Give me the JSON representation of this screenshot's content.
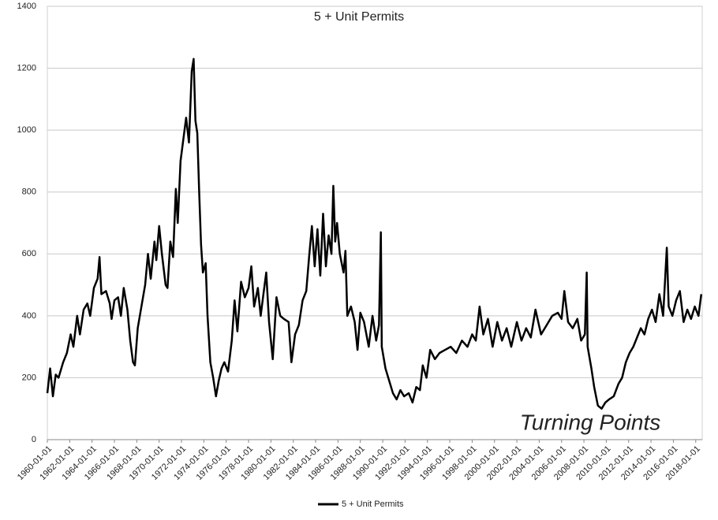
{
  "chart_data": {
    "type": "line",
    "title": "5 + Unit Permits",
    "annotation": "Turning Points",
    "x": [
      "1960-01-01",
      "1960-04-01",
      "1960-07-01",
      "1960-10-01",
      "1961-01-01",
      "1961-06-01",
      "1961-10-01",
      "1962-02-01",
      "1962-05-01",
      "1962-09-01",
      "1962-12-01",
      "1963-04-01",
      "1963-08-01",
      "1963-11-01",
      "1964-03-01",
      "1964-07-01",
      "1964-09-01",
      "1964-11-01",
      "1965-04-01",
      "1965-08-01",
      "1965-10-01",
      "1966-01-01",
      "1966-05-01",
      "1966-08-01",
      "1966-11-01",
      "1967-03-01",
      "1967-06-01",
      "1967-09-01",
      "1967-11-01",
      "1968-02-01",
      "1968-06-01",
      "1968-10-01",
      "1969-01-01",
      "1969-04-01",
      "1969-08-01",
      "1969-10-01",
      "1970-01-01",
      "1970-04-01",
      "1970-08-01",
      "1970-10-01",
      "1971-01-01",
      "1971-04-01",
      "1971-07-01",
      "1971-09-01",
      "1971-12-01",
      "1972-03-01",
      "1972-06-01",
      "1972-09-01",
      "1972-12-01",
      "1973-02-01",
      "1973-04-01",
      "1973-06-01",
      "1973-08-01",
      "1973-10-01",
      "1973-12-01",
      "1974-03-01",
      "1974-05-01",
      "1974-08-01",
      "1974-11-01",
      "1975-02-01",
      "1975-05-01",
      "1975-08-01",
      "1975-11-01",
      "1976-03-01",
      "1976-07-01",
      "1976-10-01",
      "1977-01-01",
      "1977-05-01",
      "1977-09-01",
      "1978-01-01",
      "1978-04-01",
      "1978-07-01",
      "1978-11-01",
      "1979-02-01",
      "1979-05-01",
      "1979-08-01",
      "1979-11-01",
      "1980-03-01",
      "1980-07-01",
      "1980-11-01",
      "1981-03-01",
      "1981-08-01",
      "1981-11-01",
      "1982-03-01",
      "1982-07-01",
      "1982-11-01",
      "1983-03-01",
      "1983-06-01",
      "1983-09-01",
      "1983-12-01",
      "1984-03-01",
      "1984-06-01",
      "1984-09-01",
      "1984-12-01",
      "1985-03-01",
      "1985-06-01",
      "1985-08-01",
      "1985-10-01",
      "1985-12-01",
      "1986-03-01",
      "1986-07-01",
      "1986-09-01",
      "1986-11-01",
      "1987-03-01",
      "1987-07-01",
      "1987-10-01",
      "1988-01-01",
      "1988-05-01",
      "1988-10-01",
      "1989-02-01",
      "1989-06-01",
      "1989-09-01",
      "1989-11-01",
      "1989-12-01",
      "1990-04-01",
      "1990-08-01",
      "1990-12-01",
      "1991-04-01",
      "1991-08-01",
      "1991-12-01",
      "1992-05-01",
      "1992-09-01",
      "1993-01-01",
      "1993-05-01",
      "1993-08-01",
      "1993-12-01",
      "1994-04-01",
      "1994-09-01",
      "1995-02-01",
      "1995-08-01",
      "1996-02-01",
      "1996-08-01",
      "1997-02-01",
      "1997-08-01",
      "1998-01-01",
      "1998-05-01",
      "1998-09-01",
      "1999-01-01",
      "1999-06-01",
      "1999-11-01",
      "2000-04-01",
      "2000-09-01",
      "2001-02-01",
      "2001-07-01",
      "2002-01-01",
      "2002-06-01",
      "2002-11-01",
      "2003-04-01",
      "2003-09-01",
      "2004-03-01",
      "2004-09-01",
      "2005-03-01",
      "2005-09-01",
      "2006-01-01",
      "2006-04-01",
      "2006-08-01",
      "2007-01-01",
      "2007-06-01",
      "2007-10-01",
      "2008-02-01",
      "2008-04-01",
      "2008-05-01",
      "2008-09-01",
      "2008-12-01",
      "2009-04-01",
      "2009-08-01",
      "2009-12-01",
      "2010-04-01",
      "2010-09-01",
      "2011-02-01",
      "2011-06-01",
      "2011-10-01",
      "2012-02-01",
      "2012-06-01",
      "2012-10-01",
      "2013-02-01",
      "2013-06-01",
      "2013-10-01",
      "2014-02-01",
      "2014-06-01",
      "2014-10-01",
      "2015-02-01",
      "2015-06-01",
      "2015-08-01",
      "2015-12-01",
      "2016-04-01",
      "2016-08-01",
      "2016-12-01",
      "2017-04-01",
      "2017-08-01",
      "2017-12-01",
      "2018-04-01",
      "2018-07-01"
    ],
    "series": [
      {
        "name": "5 + Unit Permits",
        "color": "#000000",
        "values": [
          150,
          230,
          140,
          210,
          200,
          250,
          280,
          340,
          300,
          400,
          340,
          420,
          440,
          400,
          490,
          520,
          590,
          470,
          480,
          440,
          390,
          450,
          460,
          400,
          490,
          420,
          320,
          250,
          240,
          360,
          430,
          500,
          600,
          520,
          640,
          580,
          690,
          600,
          500,
          490,
          640,
          590,
          810,
          700,
          900,
          970,
          1040,
          960,
          1190,
          1230,
          1030,
          990,
          800,
          630,
          540,
          570,
          400,
          250,
          200,
          140,
          190,
          230,
          250,
          220,
          320,
          450,
          350,
          510,
          460,
          490,
          560,
          430,
          490,
          400,
          470,
          540,
          380,
          260,
          460,
          400,
          390,
          380,
          250,
          340,
          370,
          450,
          480,
          590,
          690,
          560,
          680,
          530,
          730,
          560,
          660,
          600,
          820,
          640,
          700,
          600,
          540,
          610,
          400,
          430,
          380,
          290,
          410,
          380,
          300,
          400,
          320,
          370,
          670,
          300,
          230,
          190,
          150,
          130,
          160,
          140,
          150,
          120,
          170,
          160,
          240,
          200,
          290,
          260,
          280,
          290,
          300,
          280,
          320,
          300,
          340,
          320,
          430,
          340,
          390,
          300,
          380,
          320,
          360,
          300,
          380,
          320,
          360,
          330,
          420,
          340,
          370,
          400,
          410,
          390,
          480,
          380,
          360,
          390,
          320,
          340,
          540,
          300,
          230,
          170,
          110,
          100,
          120,
          130,
          140,
          180,
          200,
          250,
          280,
          300,
          330,
          360,
          340,
          390,
          420,
          380,
          470,
          400,
          620,
          430,
          400,
          450,
          480,
          380,
          420,
          390,
          430,
          400,
          470
        ]
      }
    ],
    "xlim": [
      "1960-01-01",
      "2018-08-01"
    ],
    "xticks": [
      "1960-01-01",
      "1962-01-01",
      "1964-01-01",
      "1966-01-01",
      "1968-01-01",
      "1970-01-01",
      "1972-01-01",
      "1974-01-01",
      "1976-01-01",
      "1978-01-01",
      "1980-01-01",
      "1982-01-01",
      "1984-01-01",
      "1986-01-01",
      "1988-01-01",
      "1990-01-01",
      "1992-01-01",
      "1994-01-01",
      "1996-01-01",
      "1998-01-01",
      "2000-01-01",
      "2002-01-01",
      "2004-01-01",
      "2006-01-01",
      "2008-01-01",
      "2010-01-01",
      "2012-01-01",
      "2014-01-01",
      "2016-01-01",
      "2018-01-01"
    ],
    "ylim": [
      0,
      1400
    ],
    "yticks": [
      0,
      200,
      400,
      600,
      800,
      1000,
      1200,
      1400
    ],
    "grid": true,
    "legend": "bottom"
  }
}
